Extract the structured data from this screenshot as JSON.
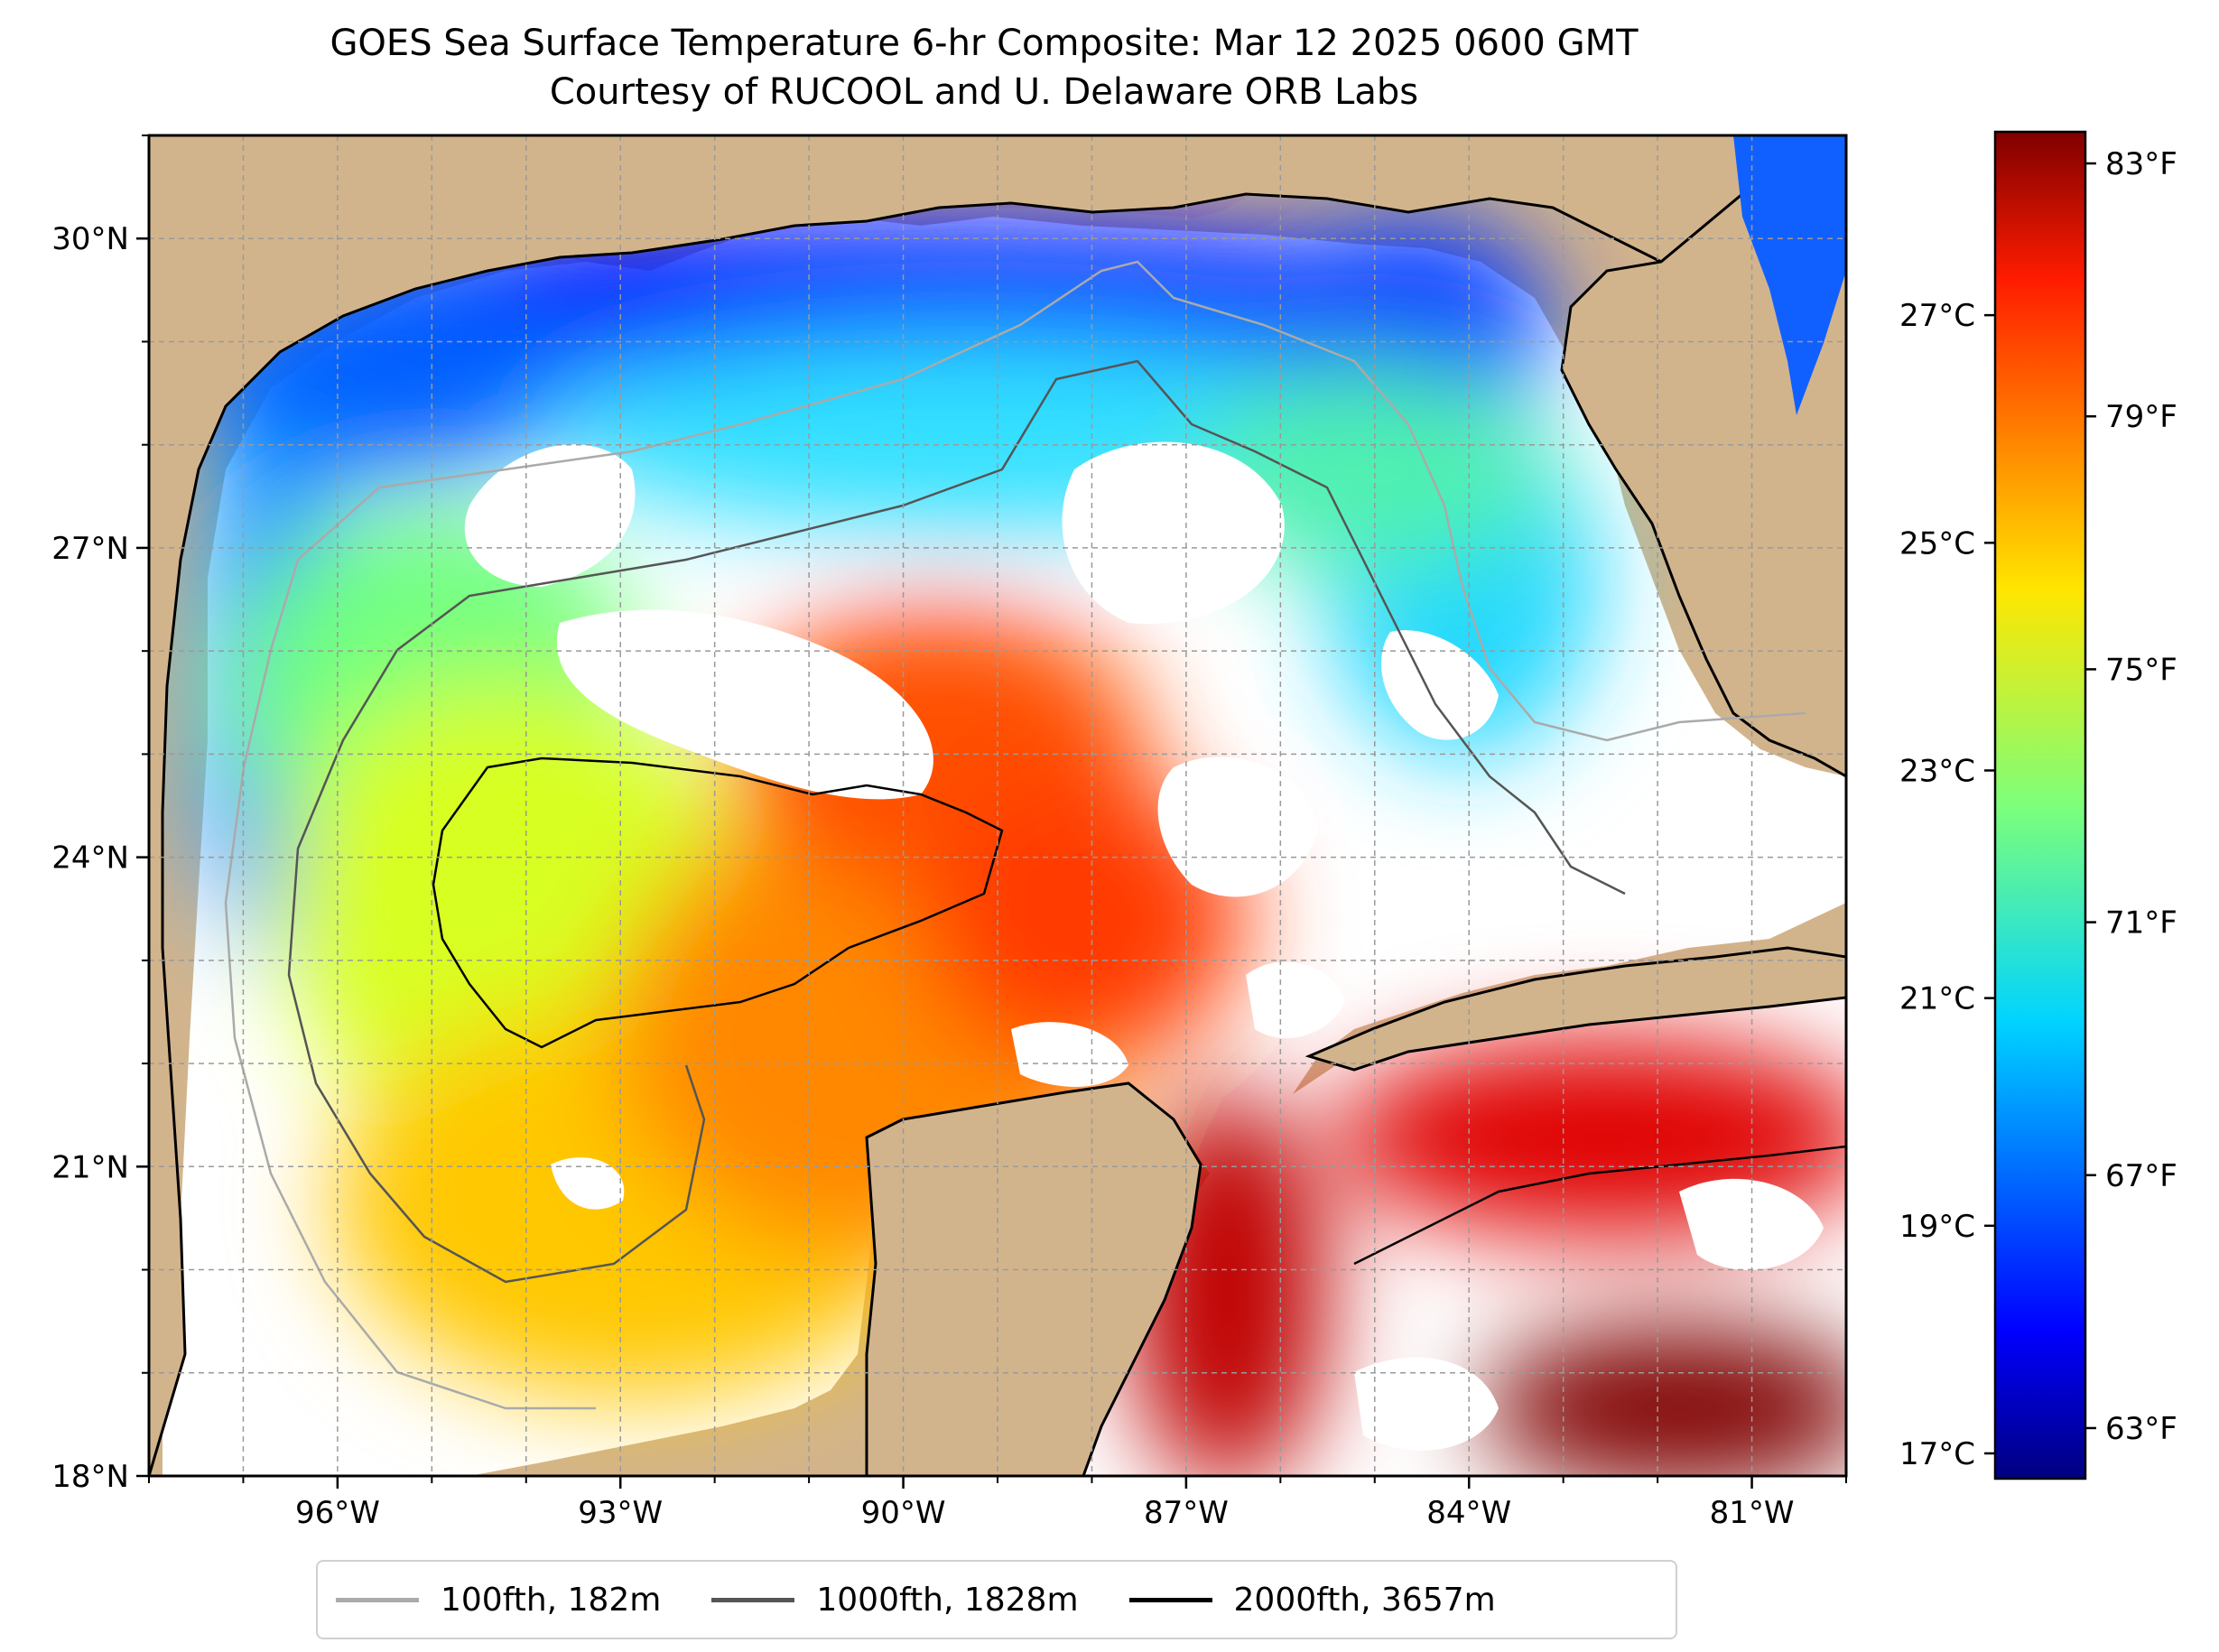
{
  "header": {
    "title": "GOES Sea Surface Temperature 6-hr Composite: Mar 12 2025 0600 GMT",
    "subtitle": "Courtesy of RUCOOL and U. Delaware ORB Labs"
  },
  "map": {
    "region": "Gulf of Mexico",
    "lon_range": [
      -98,
      -80
    ],
    "lat_range": [
      18,
      31
    ],
    "lon_ticks": [
      {
        "value": -96,
        "label": "96°W"
      },
      {
        "value": -93,
        "label": "93°W"
      },
      {
        "value": -90,
        "label": "90°W"
      },
      {
        "value": -87,
        "label": "87°W"
      },
      {
        "value": -84,
        "label": "84°W"
      },
      {
        "value": -81,
        "label": "81°W"
      }
    ],
    "lat_ticks": [
      {
        "value": 30,
        "label": "30°N"
      },
      {
        "value": 27,
        "label": "27°N"
      },
      {
        "value": 24,
        "label": "24°N"
      },
      {
        "value": 21,
        "label": "21°N"
      },
      {
        "value": 18,
        "label": "18°N"
      }
    ],
    "grid": "dashed, 1° spacing",
    "land_color": "#d2b48c",
    "no_data_color": "#ffffff"
  },
  "colorbar": {
    "colormap": "jet",
    "fahrenheit_range": [
      62.2,
      83.5
    ],
    "fahrenheit_ticks": [
      {
        "value": 83,
        "label": "83°F"
      },
      {
        "value": 79,
        "label": "79°F"
      },
      {
        "value": 75,
        "label": "75°F"
      },
      {
        "value": 71,
        "label": "71°F"
      },
      {
        "value": 67,
        "label": "67°F"
      },
      {
        "value": 63,
        "label": "63°F"
      }
    ],
    "celsius_ticks": [
      {
        "value": 27,
        "label": "27°C"
      },
      {
        "value": 25,
        "label": "25°C"
      },
      {
        "value": 23,
        "label": "23°C"
      },
      {
        "value": 21,
        "label": "21°C"
      },
      {
        "value": 19,
        "label": "19°C"
      },
      {
        "value": 17,
        "label": "17°C"
      }
    ]
  },
  "legend": {
    "items": [
      {
        "label": "100fth, 182m",
        "color": "#aaaaaa"
      },
      {
        "label": "1000fth, 1828m",
        "color": "#555555"
      },
      {
        "label": "2000fth, 3657m",
        "color": "#000000"
      }
    ]
  }
}
